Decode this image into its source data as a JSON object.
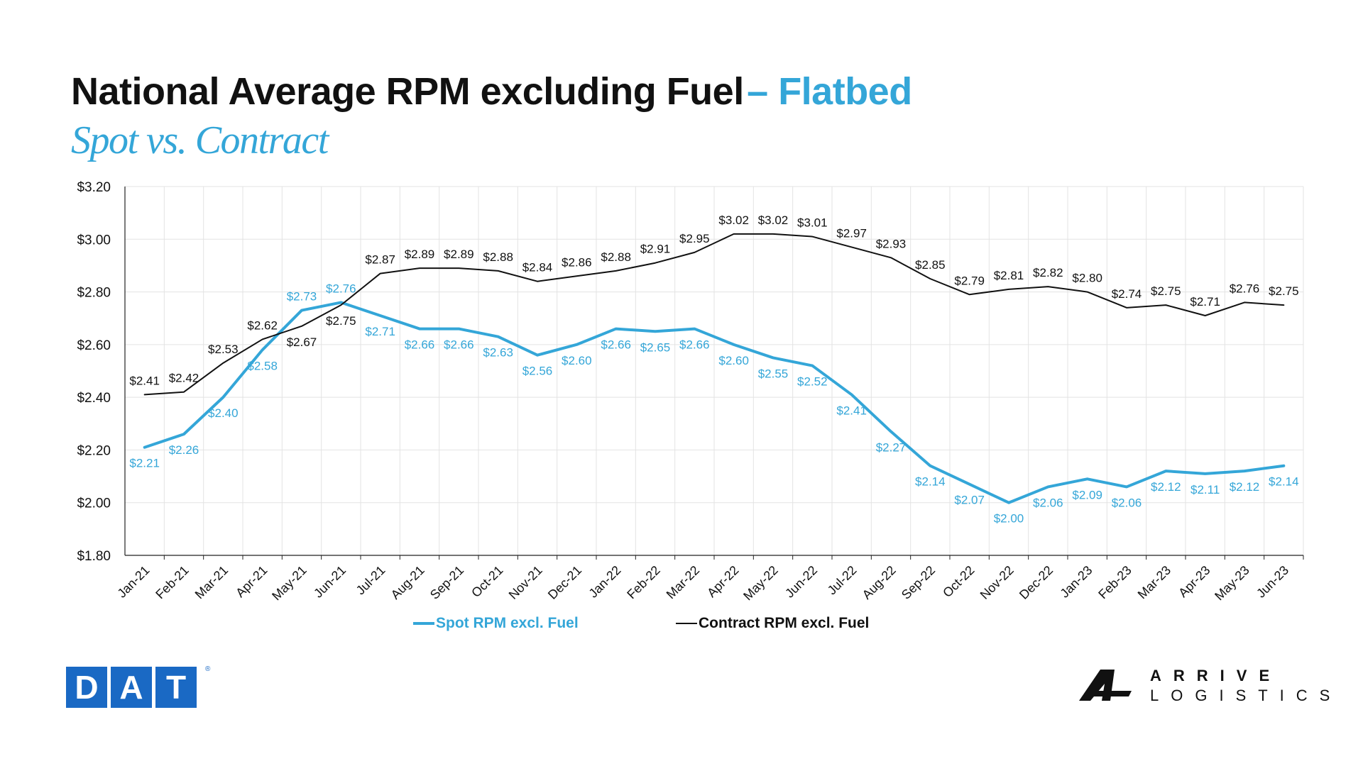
{
  "header": {
    "title_main": "National Average RPM excluding Fuel",
    "title_accent": "– Flatbed",
    "subtitle": "Spot vs. Contract"
  },
  "logos": {
    "dat_letters": [
      "D",
      "A",
      "T"
    ],
    "dat_reg": "®",
    "arrive_top": "ARRIVE",
    "arrive_bottom": "LOGISTICS"
  },
  "colors": {
    "spot": "#34a6d8",
    "contract": "#111111",
    "dat_blue": "#1a69c4",
    "grid": "#e3e3e3"
  },
  "chart_data": {
    "type": "line",
    "categories": [
      "Jan-21",
      "Feb-21",
      "Mar-21",
      "Apr-21",
      "May-21",
      "Jun-21",
      "Jul-21",
      "Aug-21",
      "Sep-21",
      "Oct-21",
      "Nov-21",
      "Dec-21",
      "Jan-22",
      "Feb-22",
      "Mar-22",
      "Apr-22",
      "May-22",
      "Jun-22",
      "Jul-22",
      "Aug-22",
      "Sep-22",
      "Oct-22",
      "Nov-22",
      "Dec-22",
      "Jan-23",
      "Feb-23",
      "Mar-23",
      "Apr-23",
      "May-23",
      "Jun-23"
    ],
    "series": [
      {
        "name": "Spot RPM excl. Fuel",
        "color": "#34a6d8",
        "values": [
          2.21,
          2.26,
          2.4,
          2.58,
          2.73,
          2.76,
          2.71,
          2.66,
          2.66,
          2.63,
          2.56,
          2.6,
          2.66,
          2.65,
          2.66,
          2.6,
          2.55,
          2.52,
          2.41,
          2.27,
          2.14,
          2.07,
          2.0,
          2.06,
          2.09,
          2.06,
          2.12,
          2.11,
          2.12,
          2.14
        ]
      },
      {
        "name": "Contract RPM excl. Fuel",
        "color": "#111111",
        "values": [
          2.41,
          2.42,
          2.53,
          2.62,
          2.67,
          2.75,
          2.87,
          2.89,
          2.89,
          2.88,
          2.84,
          2.86,
          2.88,
          2.91,
          2.95,
          3.02,
          3.02,
          3.01,
          2.97,
          2.93,
          2.85,
          2.79,
          2.81,
          2.82,
          2.8,
          2.74,
          2.75,
          2.71,
          2.76,
          2.75
        ]
      }
    ],
    "y_ticks": [
      "$3.20",
      "$3.00",
      "$2.80",
      "$2.60",
      "$2.40",
      "$2.20",
      "$2.00",
      "$1.80"
    ],
    "ylim": [
      1.8,
      3.2
    ],
    "grid": true,
    "legend": "bottom-center",
    "value_prefix": "$"
  }
}
